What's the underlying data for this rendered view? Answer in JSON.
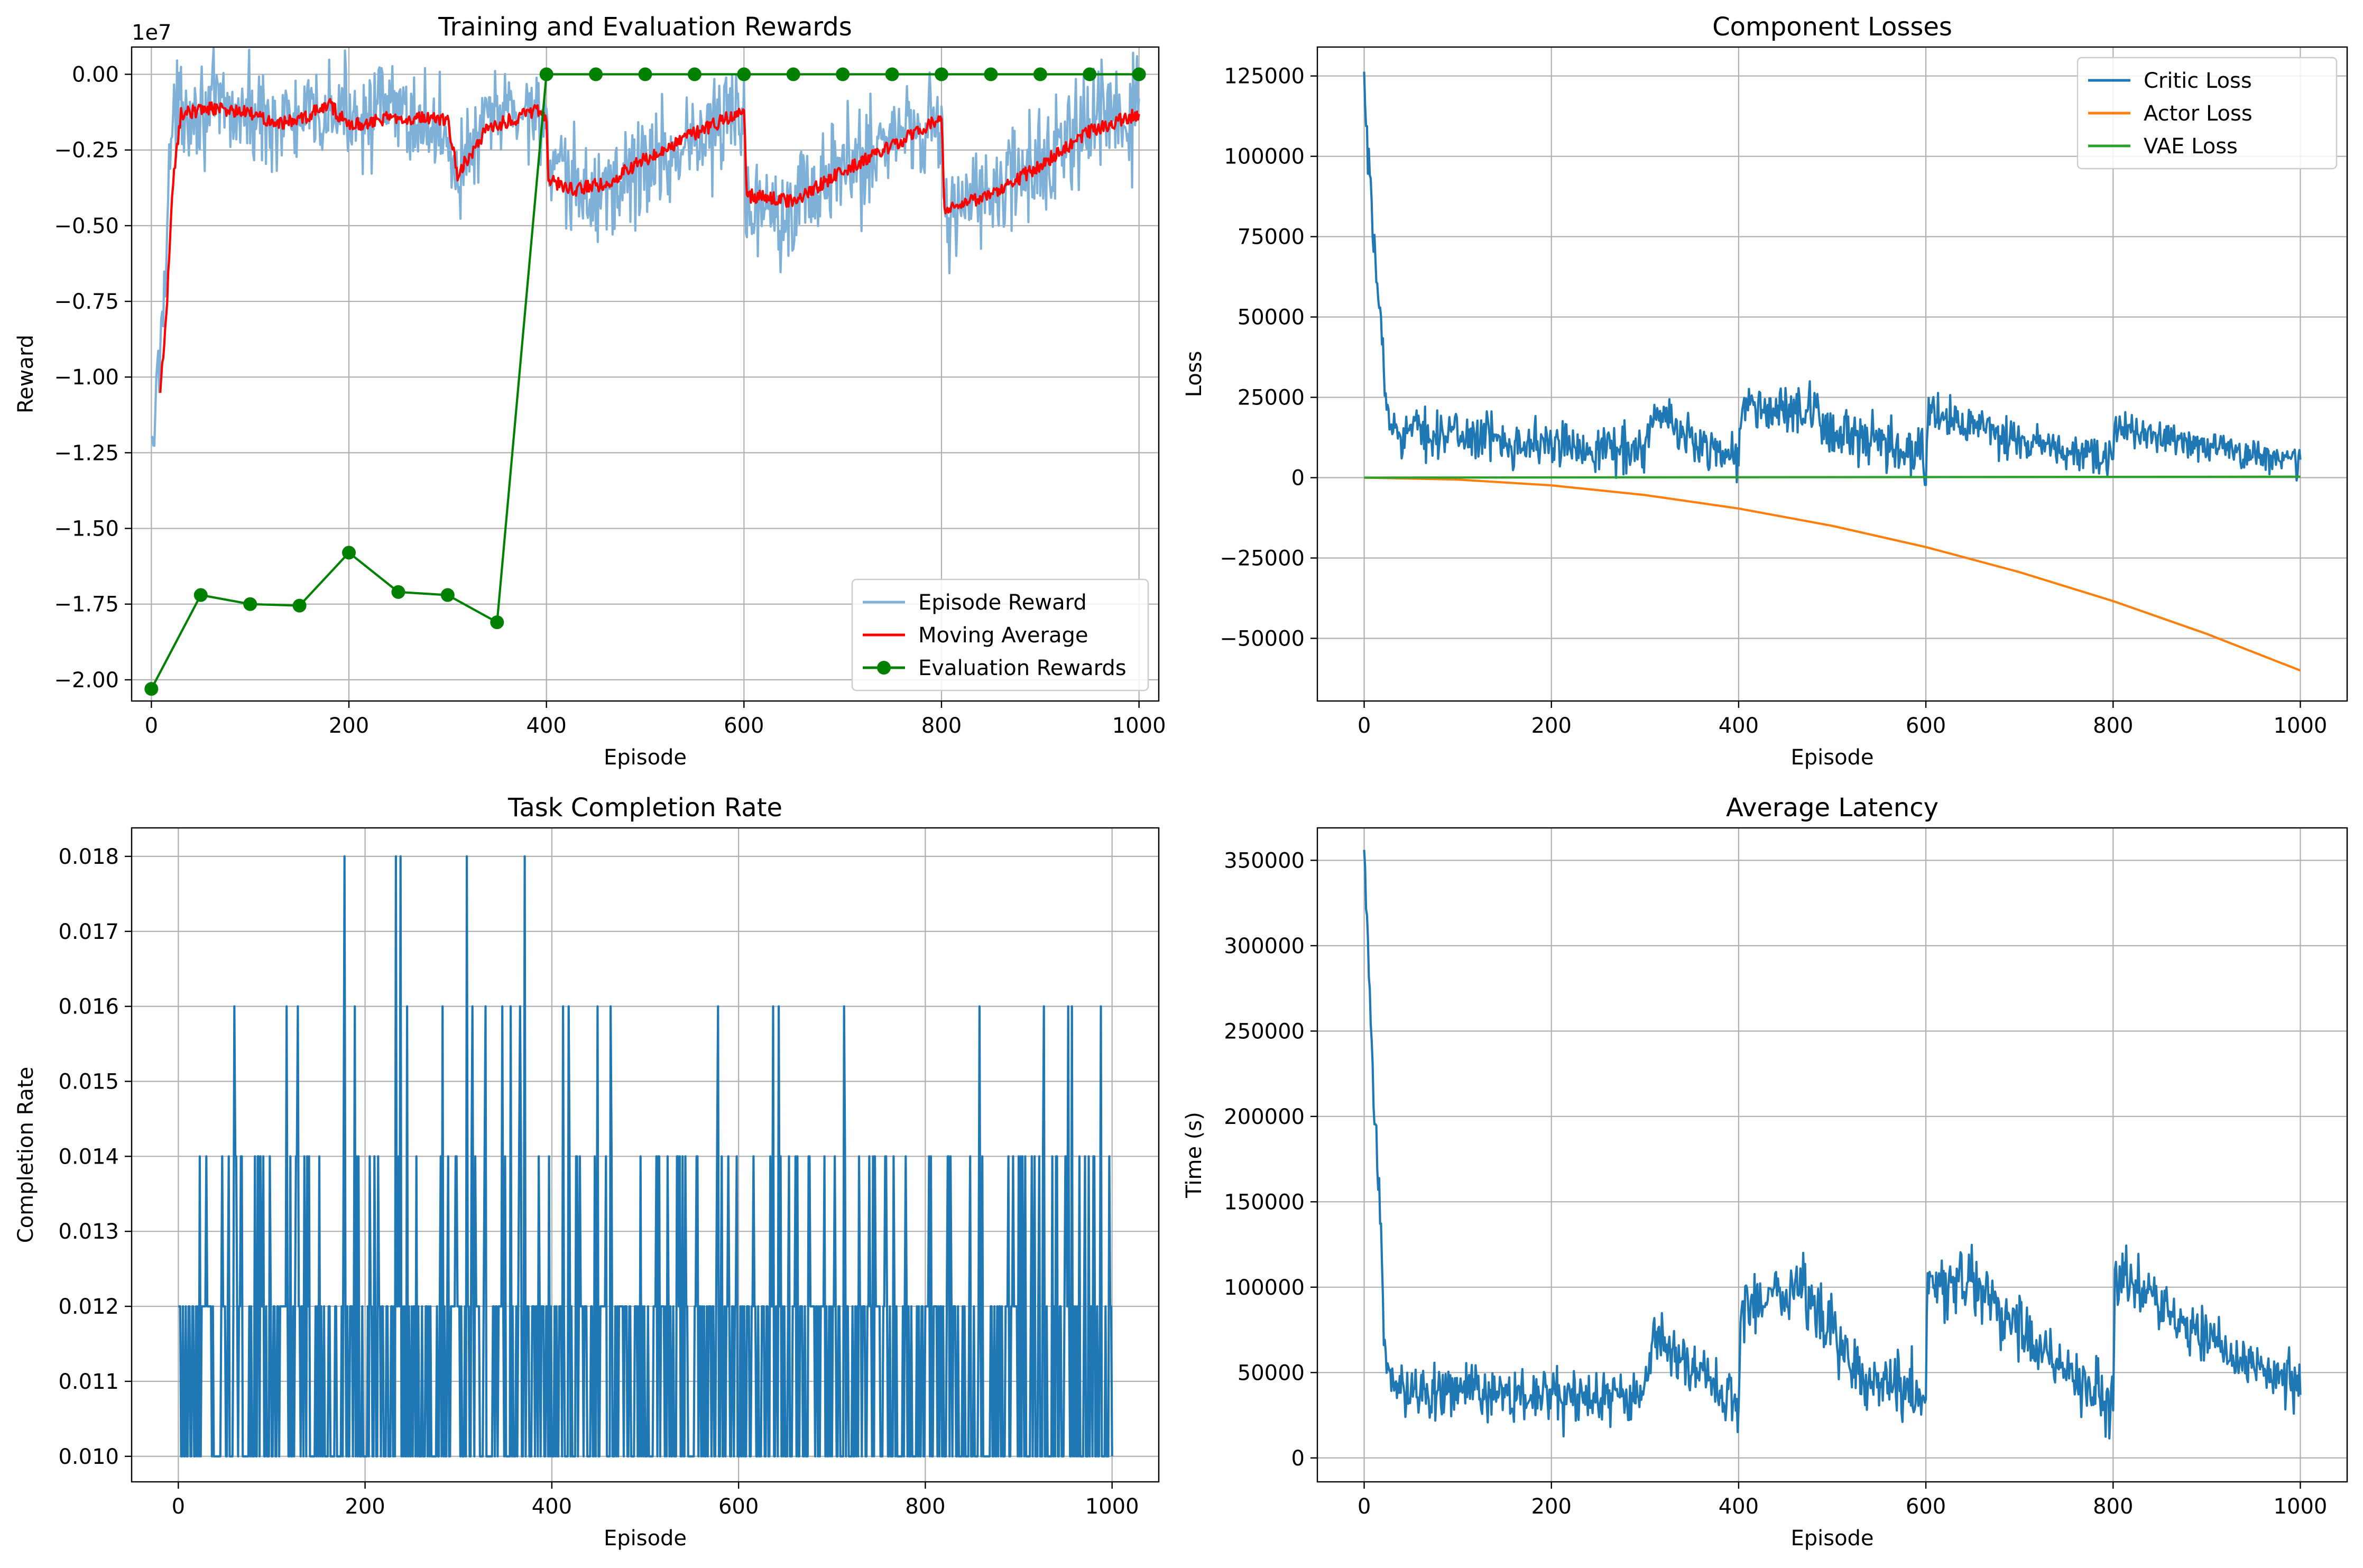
{
  "figure": {
    "background": "#ffffff"
  },
  "chart_data": [
    {
      "type": "line",
      "title": "Training and Evaluation Rewards",
      "xlabel": "Episode",
      "ylabel": "Reward",
      "offset_text": "1e7",
      "xlim": [
        -20,
        1020
      ],
      "ylim": [
        -2.07,
        0.09
      ],
      "y_scale_note": "values in units of 1e7",
      "xticks": [
        0,
        200,
        400,
        600,
        800,
        1000
      ],
      "yticks": [
        0.0,
        -0.25,
        -0.5,
        -0.75,
        -1.0,
        -1.25,
        -1.5,
        -1.75,
        -2.0
      ],
      "ytick_labels": [
        "0.00",
        "−0.25",
        "−0.50",
        "−0.75",
        "−1.00",
        "−1.25",
        "−1.50",
        "−1.75",
        "−2.00"
      ],
      "grid": true,
      "legend": "lower-right",
      "series": [
        {
          "name": "Episode Reward",
          "color": "#7fb0d8",
          "regimes": [
            {
              "x0": 0,
              "x1": 400,
              "base": [
                [
                  0,
                  -1.3
                ],
                [
                  10,
                  -0.85
                ],
                [
                  20,
                  -0.2
                ],
                [
                  30,
                  -0.1
                ],
                [
                  150,
                  -0.16
                ],
                [
                  200,
                  -0.12
                ],
                [
                  250,
                  -0.12
                ],
                [
                  300,
                  -0.2
                ],
                [
                  310,
                  -0.33
                ],
                [
                  350,
                  -0.12
                ],
                [
                  400,
                  -0.12
                ]
              ],
              "noise": 0.12
            },
            {
              "x0": 400,
              "x1": 600,
              "base": [
                [
                  400,
                  -0.12
                ],
                [
                  402,
                  -0.35
                ],
                [
                  450,
                  -0.4
                ],
                [
                  500,
                  -0.3
                ],
                [
                  560,
                  -0.2
                ],
                [
                  600,
                  -0.12
                ]
              ],
              "noise": 0.14
            },
            {
              "x0": 600,
              "x1": 800,
              "base": [
                [
                  600,
                  -0.12
                ],
                [
                  602,
                  -0.42
                ],
                [
                  650,
                  -0.42
                ],
                [
                  700,
                  -0.32
                ],
                [
                  760,
                  -0.18
                ],
                [
                  800,
                  -0.15
                ]
              ],
              "noise": 0.14
            },
            {
              "x0": 800,
              "x1": 1000,
              "base": [
                [
                  800,
                  -0.15
                ],
                [
                  802,
                  -0.45
                ],
                [
                  850,
                  -0.4
                ],
                [
                  900,
                  -0.3
                ],
                [
                  950,
                  -0.17
                ],
                [
                  1000,
                  -0.13
                ]
              ],
              "noise": 0.14
            }
          ]
        },
        {
          "name": "Moving Average",
          "color": "#ff0000",
          "knots": [
            [
              9,
              -1.05
            ],
            [
              15,
              -0.8
            ],
            [
              22,
              -0.35
            ],
            [
              30,
              -0.13
            ],
            [
              60,
              -0.11
            ],
            [
              100,
              -0.13
            ],
            [
              130,
              -0.16
            ],
            [
              150,
              -0.15
            ],
            [
              180,
              -0.1
            ],
            [
              200,
              -0.17
            ],
            [
              250,
              -0.14
            ],
            [
              300,
              -0.15
            ],
            [
              310,
              -0.33
            ],
            [
              340,
              -0.18
            ],
            [
              390,
              -0.12
            ],
            [
              400,
              -0.14
            ],
            [
              402,
              -0.35
            ],
            [
              430,
              -0.38
            ],
            [
              460,
              -0.36
            ],
            [
              500,
              -0.28
            ],
            [
              560,
              -0.18
            ],
            [
              600,
              -0.12
            ],
            [
              603,
              -0.4
            ],
            [
              650,
              -0.42
            ],
            [
              700,
              -0.32
            ],
            [
              760,
              -0.22
            ],
            [
              800,
              -0.14
            ],
            [
              803,
              -0.45
            ],
            [
              850,
              -0.4
            ],
            [
              900,
              -0.3
            ],
            [
              950,
              -0.19
            ],
            [
              1000,
              -0.13
            ]
          ]
        },
        {
          "name": "Evaluation Rewards",
          "color": "#008000",
          "x": [
            0,
            50,
            100,
            150,
            200,
            250,
            300,
            350,
            400,
            450,
            500,
            550,
            600,
            650,
            700,
            750,
            800,
            850,
            900,
            950,
            1000
          ],
          "y": [
            -2.03,
            -1.72,
            -1.75,
            -1.755,
            -1.58,
            -1.71,
            -1.72,
            -1.81,
            0.0,
            0.0,
            0.0,
            0.0,
            0.0,
            0.0,
            0.0,
            0.0,
            0.0,
            0.0,
            0.0,
            0.0,
            0.0
          ]
        }
      ]
    },
    {
      "type": "line",
      "title": "Component Losses",
      "xlabel": "Episode",
      "ylabel": "Loss",
      "xlim": [
        -50,
        1050
      ],
      "ylim": [
        -69500,
        134000
      ],
      "xticks": [
        0,
        200,
        400,
        600,
        800,
        1000
      ],
      "yticks": [
        125000,
        100000,
        75000,
        50000,
        25000,
        0,
        -25000,
        -50000
      ],
      "ytick_labels": [
        "125000",
        "100000",
        "75000",
        "50000",
        "25000",
        "0",
        "−25000",
        "−50000"
      ],
      "grid": true,
      "legend": "top-right",
      "series": [
        {
          "name": "Critic Loss",
          "color": "#1f77b4",
          "regimes": [
            {
              "x0": 0,
              "x1": 400,
              "base": [
                [
                  0,
                  120000
                ],
                [
                  5,
                  95000
                ],
                [
                  10,
                  72000
                ],
                [
                  18,
                  50000
                ],
                [
                  22,
                  25000
                ],
                [
                  30,
                  15000
                ],
                [
                  120,
                  13000
                ],
                [
                  200,
                  10000
                ],
                [
                  300,
                  9000
                ],
                [
                  310,
                  20000
                ],
                [
                  350,
                  12000
                ],
                [
                  400,
                  6000
                ]
              ],
              "noise": 5500
            },
            {
              "x0": 400,
              "x1": 600,
              "base": [
                [
                  400,
                  6000
                ],
                [
                  402,
                  22000
                ],
                [
                  470,
                  20000
                ],
                [
                  520,
                  12000
                ],
                [
                  600,
                  6000
                ]
              ],
              "noise": 6500
            },
            {
              "x0": 600,
              "x1": 800,
              "base": [
                [
                  600,
                  6000
                ],
                [
                  602,
                  20000
                ],
                [
                  650,
                  16000
                ],
                [
                  700,
                  11000
                ],
                [
                  800,
                  5000
                ]
              ],
              "noise": 5000
            },
            {
              "x0": 800,
              "x1": 1000,
              "base": [
                [
                  800,
                  5000
                ],
                [
                  802,
                  16000
                ],
                [
                  850,
                  13000
                ],
                [
                  900,
                  10000
                ],
                [
                  1000,
                  5000
                ]
              ],
              "noise": 4000
            }
          ]
        },
        {
          "name": "Actor Loss",
          "color": "#ff7f0e",
          "x": [
            0,
            100,
            200,
            300,
            400,
            500,
            600,
            700,
            800,
            900,
            1000
          ],
          "y": [
            0,
            -600,
            -2400,
            -5400,
            -9600,
            -15000,
            -21600,
            -29400,
            -38400,
            -48600,
            -60000
          ]
        },
        {
          "name": "VAE Loss",
          "color": "#2ca02c",
          "x": [
            0,
            1000
          ],
          "y": [
            0,
            300
          ]
        }
      ]
    },
    {
      "type": "line",
      "title": "Task Completion Rate",
      "xlabel": "Episode",
      "ylabel": "Completion Rate",
      "xlim": [
        -50,
        1050
      ],
      "ylim": [
        0.00966,
        0.01838
      ],
      "xticks": [
        0,
        200,
        400,
        600,
        800,
        1000
      ],
      "yticks": [
        0.01,
        0.011,
        0.012,
        0.013,
        0.014,
        0.015,
        0.016,
        0.017,
        0.018
      ],
      "ytick_labels": [
        "0.010",
        "0.011",
        "0.012",
        "0.013",
        "0.014",
        "0.015",
        "0.016",
        "0.017",
        "0.018"
      ],
      "grid": true,
      "series": [
        {
          "name": "",
          "color": "#1f77b4",
          "levels": [
            0.01,
            0.012,
            0.014,
            0.016,
            0.018
          ],
          "level_probabilities": [
            0.5,
            0.37,
            0.1,
            0.025,
            0.005
          ],
          "fixed_points": [
            [
              178,
              0.018
            ],
            [
              233,
              0.018
            ],
            [
              238,
              0.018
            ],
            [
              309,
              0.018
            ],
            [
              371,
              0.018
            ],
            [
              60,
              0.016
            ],
            [
              116,
              0.016
            ],
            [
              128,
              0.016
            ],
            [
              189,
              0.016
            ],
            [
              245,
              0.016
            ],
            [
              283,
              0.016
            ],
            [
              315,
              0.016
            ],
            [
              329,
              0.016
            ],
            [
              347,
              0.016
            ],
            [
              356,
              0.016
            ],
            [
              366,
              0.016
            ],
            [
              412,
              0.016
            ],
            [
              418,
              0.016
            ],
            [
              449,
              0.016
            ],
            [
              463,
              0.016
            ],
            [
              578,
              0.016
            ],
            [
              637,
              0.016
            ],
            [
              643,
              0.016
            ],
            [
              713,
              0.016
            ],
            [
              858,
              0.016
            ],
            [
              927,
              0.016
            ],
            [
              953,
              0.016
            ],
            [
              957,
              0.016
            ],
            [
              988,
              0.016
            ]
          ]
        }
      ]
    },
    {
      "type": "line",
      "title": "Average Latency",
      "xlabel": "Episode",
      "ylabel": "Time (s)",
      "xlim": [
        -50,
        1050
      ],
      "ylim": [
        -14000,
        369000
      ],
      "xticks": [
        0,
        200,
        400,
        600,
        800,
        1000
      ],
      "yticks": [
        350000,
        300000,
        250000,
        200000,
        150000,
        100000,
        50000,
        0
      ],
      "ytick_labels": [
        "350000",
        "300000",
        "250000",
        "200000",
        "150000",
        "100000",
        "50000",
        "0"
      ],
      "grid": true,
      "series": [
        {
          "name": "",
          "color": "#1f77b4",
          "regimes": [
            {
              "x0": 0,
              "x1": 400,
              "base": [
                [
                  0,
                  350000
                ],
                [
                  5,
                  280000
                ],
                [
                  10,
                  210000
                ],
                [
                  18,
                  140000
                ],
                [
                  22,
                  60000
                ],
                [
                  30,
                  40000
                ],
                [
                  100,
                  40000
                ],
                [
                  200,
                  35000
                ],
                [
                  300,
                  35000
                ],
                [
                  310,
                  75000
                ],
                [
                  350,
                  50000
                ],
                [
                  400,
                  30000
                ]
              ],
              "noise": 12000
            },
            {
              "x0": 400,
              "x1": 600,
              "base": [
                [
                  400,
                  30000
                ],
                [
                  402,
                  90000
                ],
                [
                  470,
                  100000
                ],
                [
                  520,
                  55000
                ],
                [
                  600,
                  35000
                ]
              ],
              "noise": 15000
            },
            {
              "x0": 600,
              "x1": 800,
              "base": [
                [
                  600,
                  35000
                ],
                [
                  602,
                  105000
                ],
                [
                  650,
                  100000
                ],
                [
                  700,
                  75000
                ],
                [
                  800,
                  30000
                ]
              ],
              "noise": 15000
            },
            {
              "x0": 800,
              "x1": 1000,
              "base": [
                [
                  800,
                  30000
                ],
                [
                  802,
                  110000
                ],
                [
                  850,
                  90000
                ],
                [
                  900,
                  70000
                ],
                [
                  1000,
                  40000
                ]
              ],
              "noise": 12000
            }
          ]
        }
      ]
    }
  ]
}
